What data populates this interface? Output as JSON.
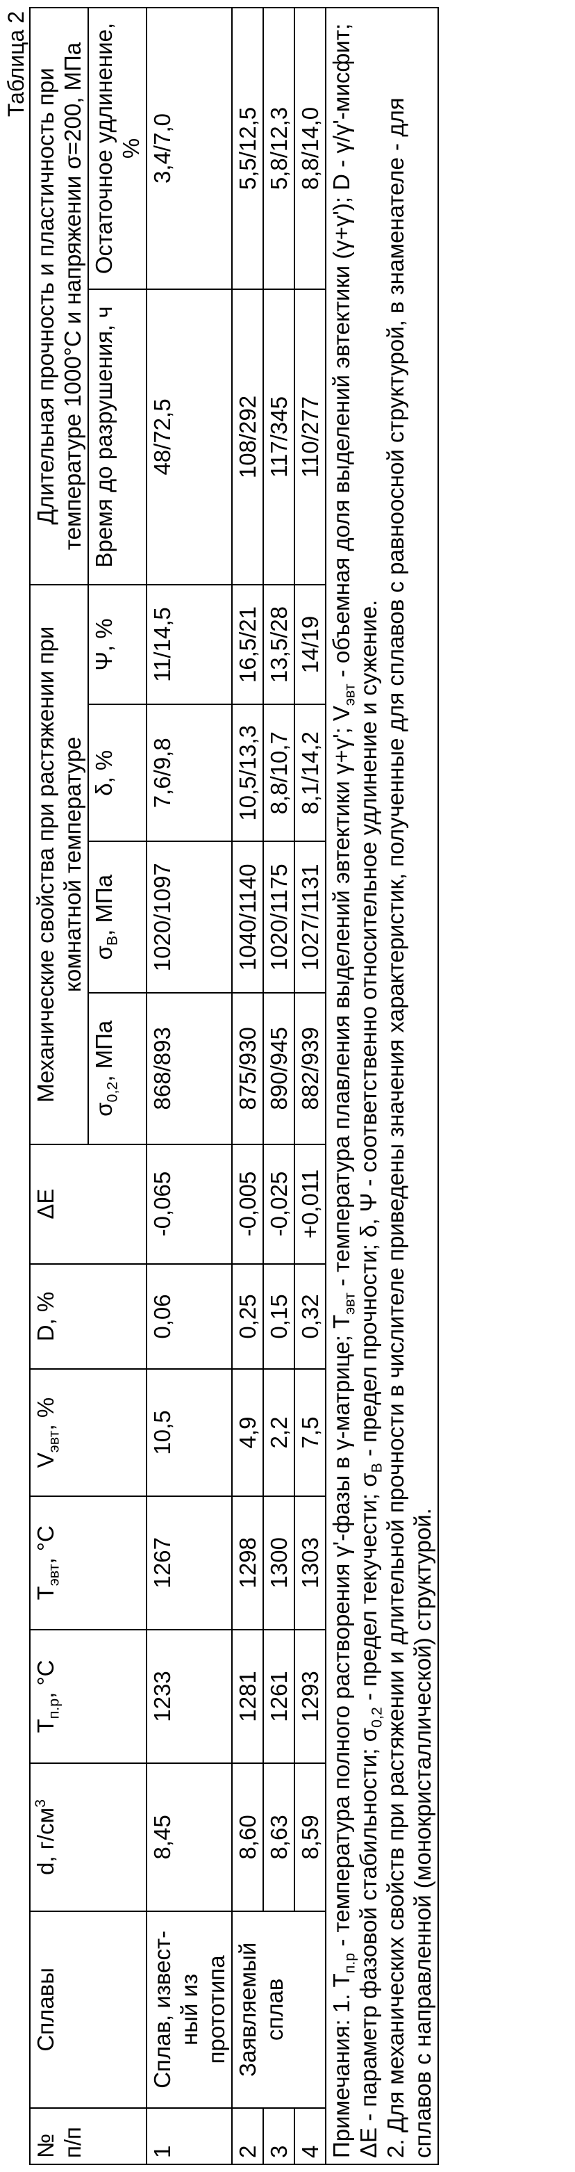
{
  "caption": "Таблица 2",
  "table": {
    "header": {
      "num": "№ п/п",
      "alloy": "Сплавы",
      "d": [
        "d, г/см",
        "3"
      ],
      "tpr": [
        "Т",
        "п.р",
        ", °С"
      ],
      "tevt": [
        "Т",
        "эвт",
        ", °С"
      ],
      "vevt": [
        "V",
        "эвт",
        ", %"
      ],
      "D": "D, %",
      "dE": "ΔЕ",
      "mech": "Механические свойства при растяжении при комнатной температуре",
      "long": "Длительная прочность и пластичность при температуре 1000°С и напряжении σ=200, МПа",
      "s02": [
        "σ",
        "0,2",
        ", МПа"
      ],
      "sB": [
        "σ",
        "В",
        ", МПа"
      ],
      "delta": "δ, %",
      "psi": "Ψ, %",
      "time": "Время до разрушения, ч",
      "elong": "Остаточное удлинение, %"
    },
    "rows": [
      [
        "1",
        "Сплав, извест-\nный из прототипа",
        "8,45",
        "1233",
        "1267",
        "10,5",
        "0,06",
        "-0,065",
        "868/893",
        "1020/1097",
        "7,6/9,8",
        "11/14,5",
        "48/72,5",
        "3,4/7,0"
      ],
      [
        "2",
        "Заявляемый сплав",
        "8,60",
        "1281",
        "1298",
        "4,9",
        "0,25",
        "-0,005",
        "875/930",
        "1040/1140",
        "10,5/13,3",
        "16,5/21",
        "108/292",
        "5,5/12,5"
      ],
      [
        "3",
        "8,63",
        "1261",
        "1300",
        "2,2",
        "0,15",
        "-0,025",
        "890/945",
        "1020/1175",
        "8,8/10,7",
        "13,5/28",
        "117/345",
        "5,8/12,3"
      ],
      [
        "4",
        "8,59",
        "1293",
        "1303",
        "7,5",
        "0,32",
        "+0,011",
        "882/939",
        "1027/1131",
        "8,1/14,2",
        "14/19",
        "110/277",
        "8,8/14,0"
      ]
    ]
  },
  "notes": [
    [
      "Примечания: 1. Т",
      "п.р",
      " - температура полного растворения γ'-фазы в γ-матрице; Т",
      "эвт",
      " - температура плавления выделений эвтектики γ+γ'; V",
      "эвт",
      " - объемная доля выделений эвтектики (γ+γ'); D - γ/γ'-мисфит; ΔЕ - параметр фазовой стабильности; σ",
      "0,2",
      " - предел текучести; σ",
      "В",
      " - предел прочности; δ, Ψ - соответственно относительное удлинение и сужение."
    ],
    "2. Для механических свойств при растяжении и длительной прочности в числителе приведены значения характеристик, полученные для сплавов с равноосной структурой, в знаменателе - для сплавов с направленной (монокристаллической) структурой."
  ]
}
